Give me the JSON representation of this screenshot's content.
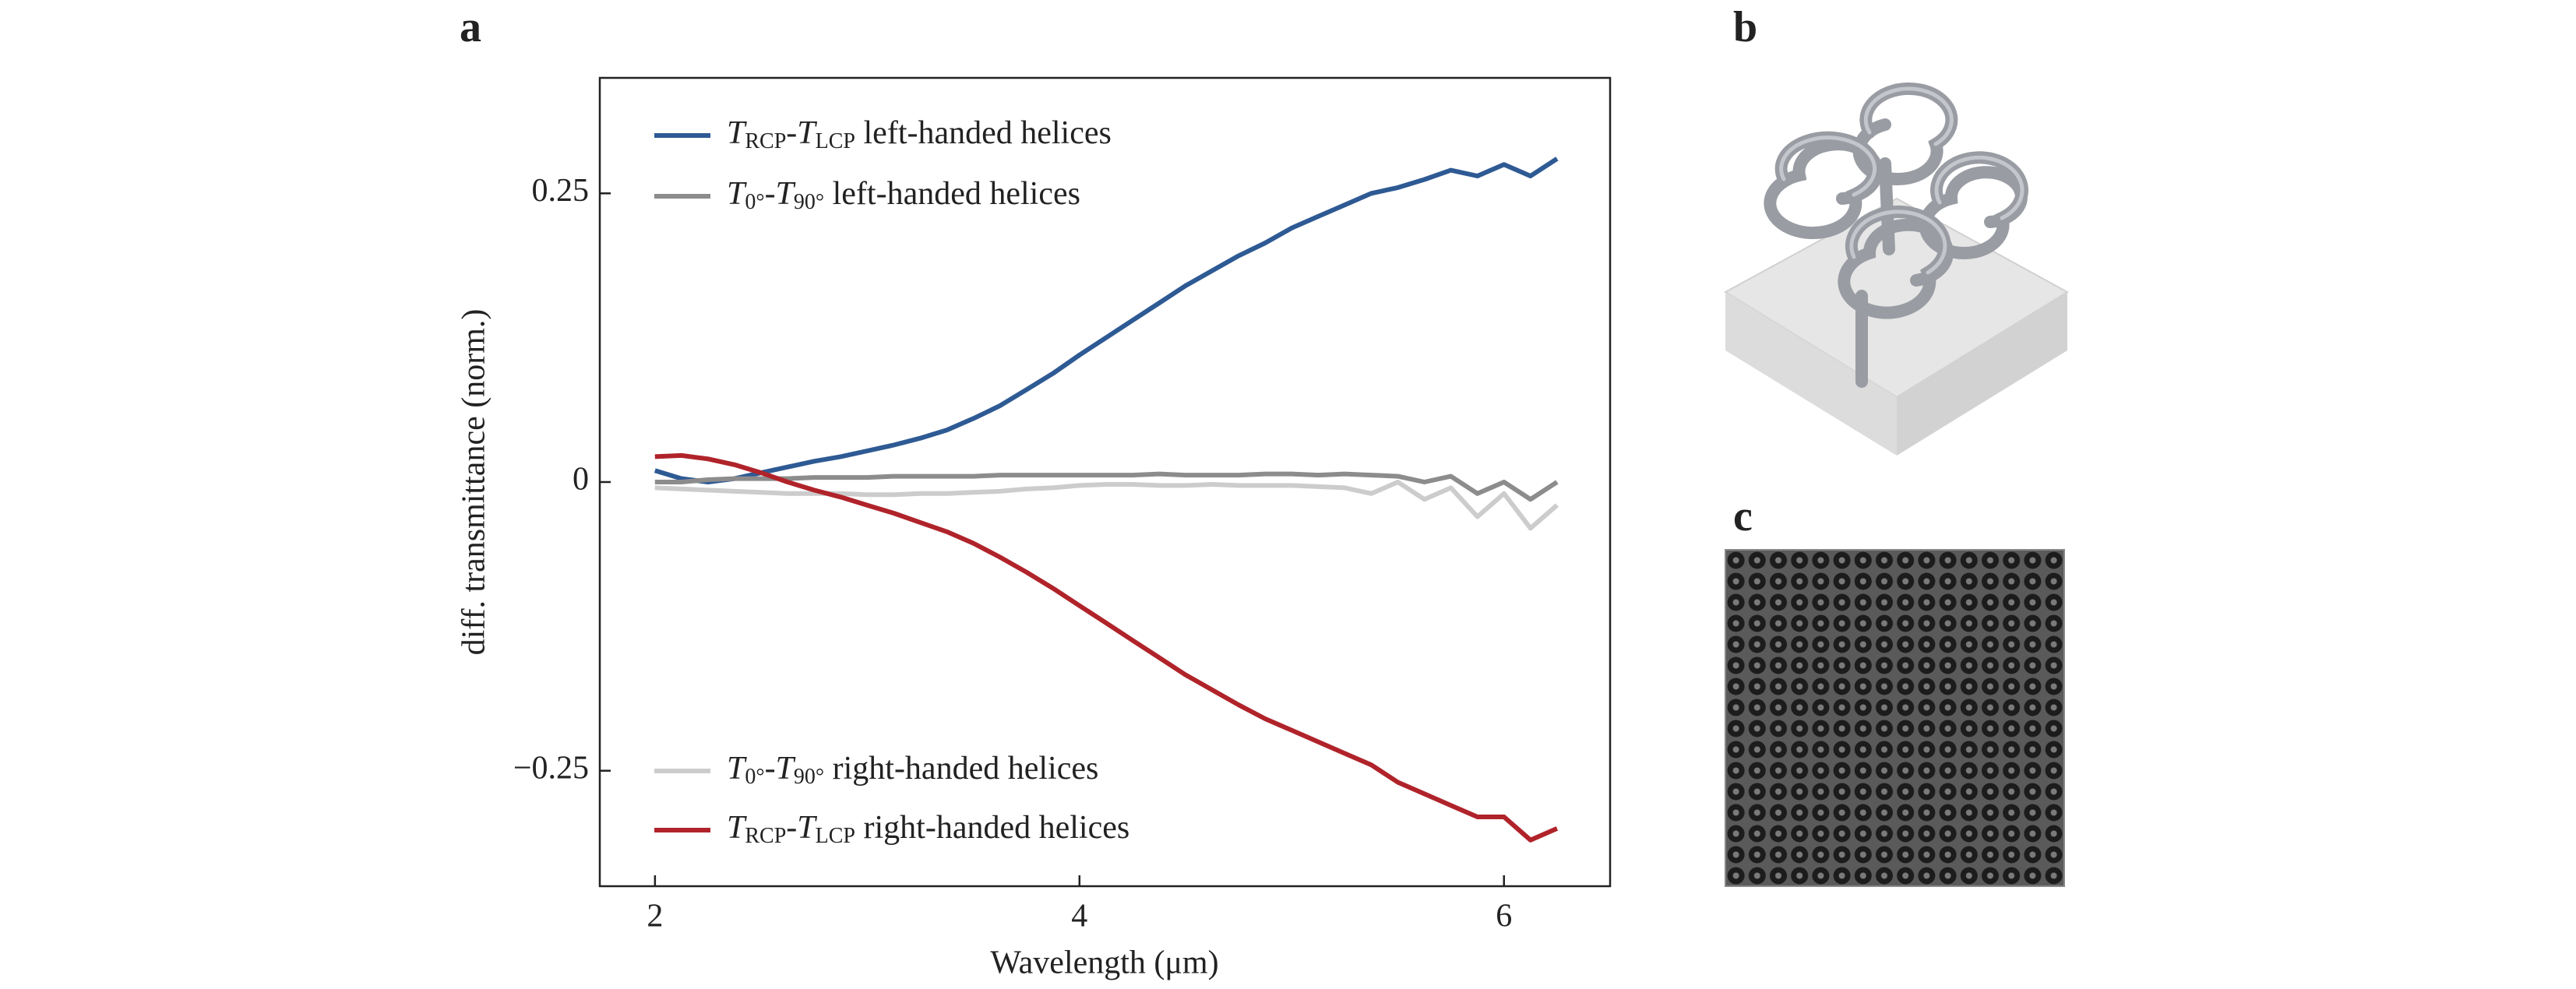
{
  "chart_data": {
    "type": "line",
    "panel_labels": [
      "a",
      "b",
      "c"
    ],
    "xlabel": "Wavelength (μm)",
    "ylabel": "diff. transmittance (norm.)",
    "x": [
      2.0,
      2.125,
      2.25,
      2.375,
      2.5,
      2.625,
      2.75,
      2.875,
      3.0,
      3.125,
      3.25,
      3.375,
      3.5,
      3.625,
      3.75,
      3.875,
      4.0,
      4.125,
      4.25,
      4.375,
      4.5,
      4.625,
      4.75,
      4.875,
      5.0,
      5.125,
      5.25,
      5.375,
      5.5,
      5.625,
      5.75,
      5.875,
      6.0,
      6.125,
      6.25
    ],
    "series": [
      {
        "name": [
          {
            "text": "T",
            "italic": true
          },
          {
            "text": "RCP",
            "sub": true
          },
          {
            "text": "-"
          },
          {
            "text": "T",
            "italic": true
          },
          {
            "text": "LCP",
            "sub": true
          },
          {
            "text": " left-handed helices"
          }
        ],
        "color": "#2e5a94",
        "values": [
          0.01,
          0.003,
          0.0,
          0.003,
          0.008,
          0.013,
          0.018,
          0.022,
          0.027,
          0.032,
          0.038,
          0.045,
          0.055,
          0.066,
          0.08,
          0.094,
          0.11,
          0.125,
          0.14,
          0.155,
          0.17,
          0.183,
          0.196,
          0.207,
          0.22,
          0.23,
          0.24,
          0.25,
          0.255,
          0.262,
          0.27,
          0.265,
          0.275,
          0.265,
          0.28
        ]
      },
      {
        "name": [
          {
            "text": "T",
            "italic": true
          },
          {
            "text": "0°",
            "sub": true
          },
          {
            "text": "-"
          },
          {
            "text": "T",
            "italic": true
          },
          {
            "text": "90°",
            "sub": true
          },
          {
            "text": " left-handed helices"
          }
        ],
        "color": "#8c8c8c",
        "values": [
          0.0,
          0.0,
          0.002,
          0.003,
          0.003,
          0.003,
          0.004,
          0.004,
          0.004,
          0.005,
          0.005,
          0.005,
          0.005,
          0.006,
          0.006,
          0.006,
          0.006,
          0.006,
          0.006,
          0.007,
          0.006,
          0.006,
          0.006,
          0.007,
          0.007,
          0.006,
          0.007,
          0.006,
          0.005,
          0.0,
          0.005,
          -0.01,
          0.0,
          -0.015,
          0.0
        ]
      },
      {
        "name": [
          {
            "text": "T",
            "italic": true
          },
          {
            "text": "0°",
            "sub": true
          },
          {
            "text": "-"
          },
          {
            "text": "T",
            "italic": true
          },
          {
            "text": "90°",
            "sub": true
          },
          {
            "text": " right-handed helices"
          }
        ],
        "color": "#cccccc",
        "values": [
          -0.005,
          -0.006,
          -0.007,
          -0.008,
          -0.009,
          -0.01,
          -0.01,
          -0.01,
          -0.011,
          -0.011,
          -0.01,
          -0.01,
          -0.009,
          -0.008,
          -0.006,
          -0.005,
          -0.003,
          -0.002,
          -0.002,
          -0.003,
          -0.003,
          -0.002,
          -0.003,
          -0.003,
          -0.003,
          -0.004,
          -0.005,
          -0.01,
          0.0,
          -0.015,
          -0.005,
          -0.03,
          -0.01,
          -0.04,
          -0.02
        ]
      },
      {
        "name": [
          {
            "text": "T",
            "italic": true
          },
          {
            "text": "RCP",
            "sub": true
          },
          {
            "text": "-"
          },
          {
            "text": "T",
            "italic": true
          },
          {
            "text": "LCP",
            "sub": true
          },
          {
            "text": " right-handed helices"
          }
        ],
        "color": "#b0232a",
        "values": [
          0.022,
          0.023,
          0.02,
          0.015,
          0.008,
          0.0,
          -0.007,
          -0.013,
          -0.02,
          -0.027,
          -0.035,
          -0.043,
          -0.053,
          -0.065,
          -0.078,
          -0.092,
          -0.107,
          -0.122,
          -0.137,
          -0.152,
          -0.167,
          -0.18,
          -0.193,
          -0.205,
          -0.215,
          -0.225,
          -0.235,
          -0.245,
          -0.26,
          -0.27,
          -0.28,
          -0.29,
          -0.29,
          -0.31,
          -0.3
        ]
      }
    ],
    "xlim": [
      1.74,
      6.5
    ],
    "xticks": [
      2,
      4,
      6
    ],
    "ylim": [
      -0.35,
      0.35
    ],
    "yticks": [
      {
        "value": -0.25,
        "label": "−0.25"
      },
      0,
      0.25
    ],
    "grid": false
  }
}
